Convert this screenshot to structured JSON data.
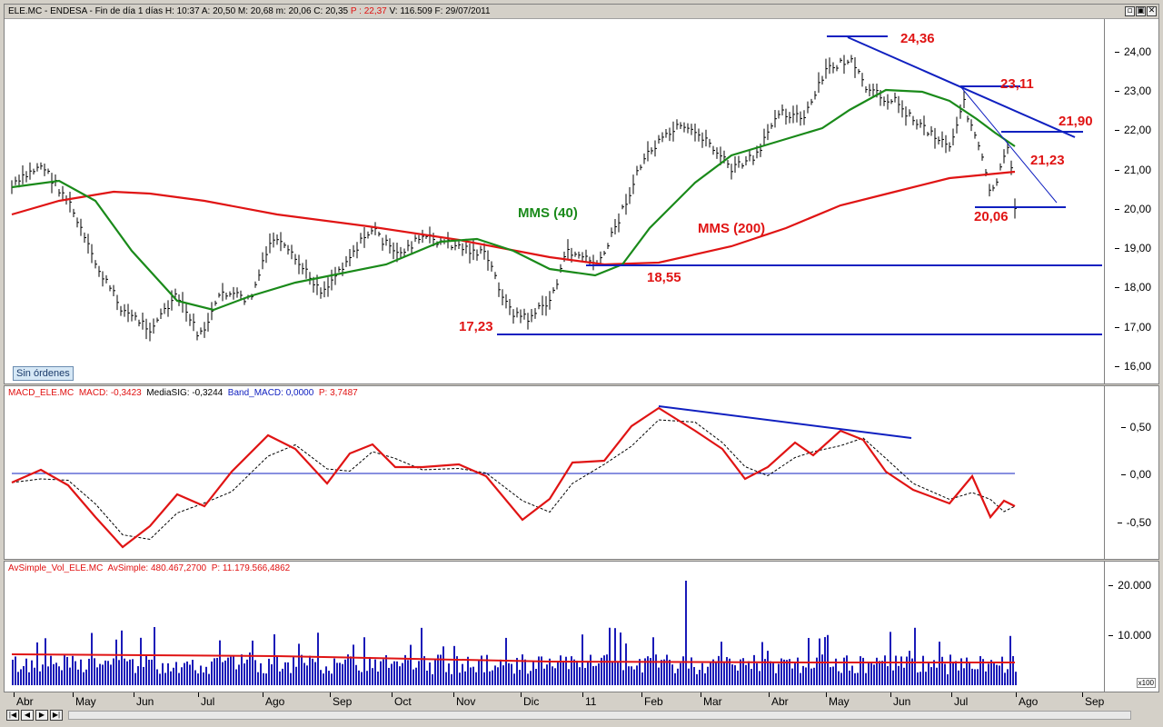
{
  "price_panel": {
    "title_prefix": "ELE.MC - ENDESA - Fin de día 1 días  H: 10:37  A: 20,50  M: 20,68  m: 20,06  C: 20,35 ",
    "title_p": "P : 22,37",
    "title_suffix": "  V: 116.509  F: 29/07/2011",
    "y_ticks": [
      "24,00",
      "23,00",
      "22,00",
      "21,00",
      "20,00",
      "19,00",
      "18,00",
      "17,00",
      "16,00"
    ],
    "annotations": {
      "a2436": "24,36",
      "a2311": "23,11",
      "a2190": "21,90",
      "a2123": "21,23",
      "a2006": "20,06",
      "a1855": "18,55",
      "a1723": "17,23",
      "mms40": "MMS (40)",
      "mms200": "MMS (200)"
    },
    "orders_label": "Sin órdenes"
  },
  "macd_panel": {
    "title_name": "MACD_ELE.MC",
    "title_macd": "MACD: -0,3423",
    "title_sig": "MediaSIG: -0,3244",
    "title_band": "Band_MACD: 0,0000",
    "title_p": "P: 3,7487",
    "y_ticks": [
      "0,50",
      "0,00",
      "-0,50"
    ]
  },
  "vol_panel": {
    "title_name": "AvSimple_Vol_ELE.MC",
    "title_av": "AvSimple: 480.467,2700",
    "title_p": "P: 11.179.566,4862",
    "y_ticks": [
      "20.000",
      "10.000"
    ],
    "scale_label": "x100"
  },
  "x_axis": {
    "labels": [
      "Abr",
      "May",
      "Jun",
      "Jul",
      "Ago",
      "Sep",
      "Oct",
      "Nov",
      "Dic",
      "11",
      "Feb",
      "Mar",
      "Abr",
      "May",
      "Jun",
      "Jul",
      "Ago",
      "Sep"
    ]
  },
  "window_buttons": {
    "minimize": "▫",
    "restore": "▣",
    "close": "✕"
  },
  "navigation": {
    "first": "|◀",
    "prev": "◀",
    "next": "▶",
    "last": "▶|"
  },
  "colors": {
    "ma200": "#e01414",
    "ma40": "#1a8a1a",
    "trend": "#1020c0",
    "macd": "#e01414",
    "volume": "#1a1ab8"
  }
}
